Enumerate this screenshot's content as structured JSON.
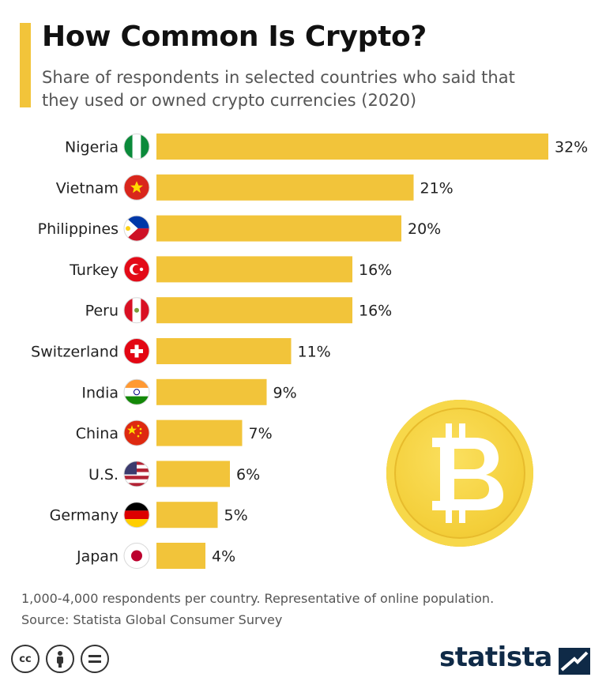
{
  "header": {
    "title": "How Common Is Crypto?",
    "subtitle": "Share of respondents in selected countries who said that they used or owned crypto currencies (2020)"
  },
  "footer": {
    "note": "1,000-4,000 respondents per country. Representative of online population.",
    "source": "Source: Statista Global Consumer Survey",
    "brand": "statista",
    "license_icons": [
      "cc-icon",
      "attribution-icon",
      "no-derivatives-icon"
    ]
  },
  "colors": {
    "bar": "#f2c43a",
    "accent": "#f2c43a",
    "coin": "#f4cf3a",
    "brand": "#0f2a47"
  },
  "chart_data": {
    "type": "bar",
    "orientation": "horizontal",
    "categories": [
      "Nigeria",
      "Vietnam",
      "Philippines",
      "Turkey",
      "Peru",
      "Switzerland",
      "India",
      "China",
      "U.S.",
      "Germany",
      "Japan"
    ],
    "values": [
      32,
      21,
      20,
      16,
      16,
      11,
      9,
      7,
      6,
      5,
      4
    ],
    "value_labels": [
      "32%",
      "21%",
      "20%",
      "16%",
      "16%",
      "11%",
      "9%",
      "7%",
      "6%",
      "5%",
      "4%"
    ],
    "flag_icons": [
      "nigeria-flag-icon",
      "vietnam-flag-icon",
      "philippines-flag-icon",
      "turkey-flag-icon",
      "peru-flag-icon",
      "switzerland-flag-icon",
      "india-flag-icon",
      "china-flag-icon",
      "us-flag-icon",
      "germany-flag-icon",
      "japan-flag-icon"
    ],
    "unit": "%",
    "xlim": [
      0,
      32
    ],
    "grid": false,
    "xlabel": "",
    "ylabel": ""
  }
}
